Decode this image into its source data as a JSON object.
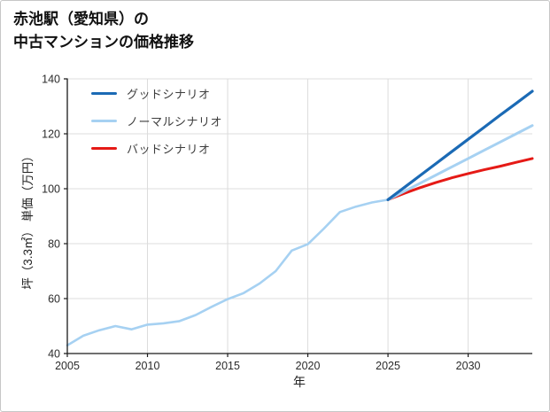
{
  "chart_data": {
    "type": "line",
    "title": "赤池駅（愛知県）の中古マンションの価格推移",
    "title_lines": [
      "赤池駅（愛知県）の",
      "中古マンションの価格推移"
    ],
    "xlabel": "年",
    "ylabel": "坪（3.3㎡） 単価（万円）",
    "xlim": [
      2005,
      2034
    ],
    "ylim": [
      40,
      140
    ],
    "xticks": [
      2005,
      2010,
      2015,
      2020,
      2025,
      2030
    ],
    "yticks": [
      40,
      60,
      80,
      100,
      120,
      140
    ],
    "grid": true,
    "legend_position": "upper-left-inside",
    "colors": {
      "grid": "#dcdcdc",
      "axis": "#1a1a1a",
      "tick_text": "#2b2b2b",
      "good": "#1b6ab5",
      "normal": "#a6d1f2",
      "bad": "#e51a16"
    },
    "series": [
      {
        "id": "good",
        "name": "グッドシナリオ",
        "color": "#1b6ab5",
        "width": 3.2,
        "x": [
          2025,
          2026,
          2027,
          2028,
          2029,
          2030,
          2031,
          2032,
          2033,
          2034
        ],
        "values": [
          96,
          100.4,
          104.8,
          109.2,
          113.6,
          118,
          122.4,
          126.8,
          131.1,
          135.5
        ]
      },
      {
        "id": "normal",
        "name": "ノーマルシナリオ",
        "color": "#a6d1f2",
        "width": 3,
        "x": [
          2025,
          2026,
          2027,
          2028,
          2029,
          2030,
          2031,
          2032,
          2033,
          2034
        ],
        "values": [
          96,
          99,
          102,
          105,
          108,
          111,
          114,
          117,
          120,
          123
        ]
      },
      {
        "id": "bad",
        "name": "バッドシナリオ",
        "color": "#e51a16",
        "width": 3,
        "x": [
          2025,
          2026,
          2027,
          2028,
          2029,
          2030,
          2031,
          2032,
          2033,
          2034
        ],
        "values": [
          96,
          98.3,
          100.4,
          102.3,
          104,
          105.5,
          106.9,
          108.2,
          109.6,
          111
        ]
      },
      {
        "id": "history",
        "color": "#a6d1f2",
        "width": 2.6,
        "x": [
          2005,
          2006,
          2007,
          2008,
          2009,
          2010,
          2011,
          2012,
          2013,
          2014,
          2015,
          2016,
          2017,
          2018,
          2019,
          2020,
          2021,
          2022,
          2023,
          2024,
          2025
        ],
        "values": [
          43,
          46.5,
          48.5,
          50,
          48.8,
          50.5,
          51,
          51.8,
          54,
          57,
          59.8,
          62,
          65.5,
          70,
          77.5,
          79.8,
          85.5,
          91.5,
          93.5,
          95,
          96
        ]
      }
    ]
  }
}
